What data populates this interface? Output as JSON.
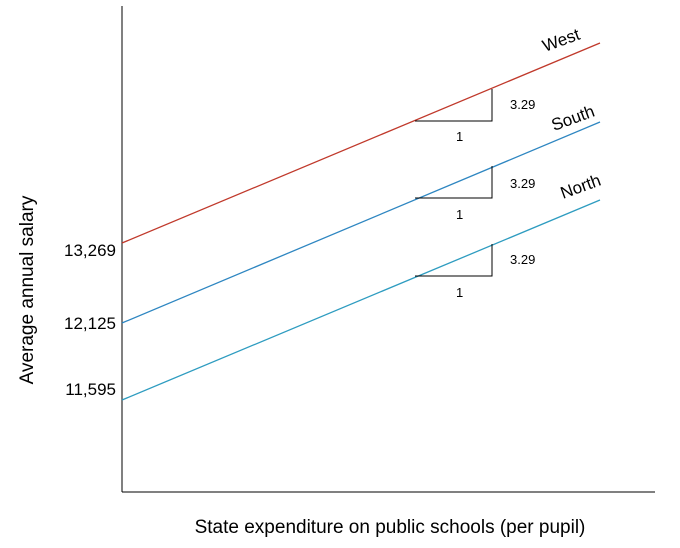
{
  "chart_data": {
    "type": "line",
    "xlabel": "State expenditure on public schools (per pupil)",
    "ylabel": "Average annual salary",
    "y_ticks": [
      "13,269",
      "12,125",
      "11,595"
    ],
    "slope": "3.29",
    "run": "1",
    "series": [
      {
        "name": "West",
        "intercept_label": "13,269",
        "color": "#c0392b"
      },
      {
        "name": "South",
        "intercept_label": "12,125",
        "color": "#2e86c1"
      },
      {
        "name": "North",
        "intercept_label": "11,595",
        "color": "#2e9cc0"
      }
    ]
  }
}
